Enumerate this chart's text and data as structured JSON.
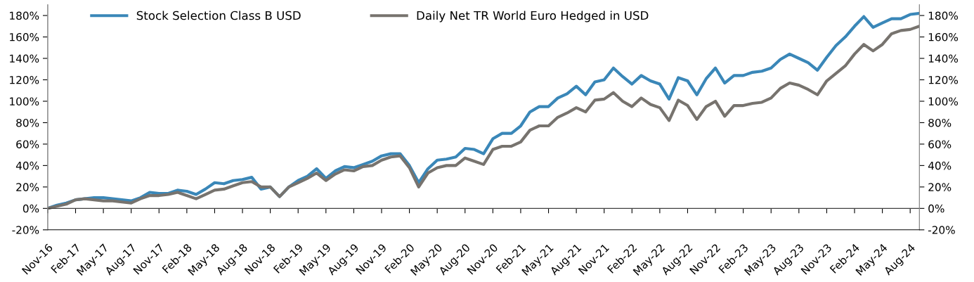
{
  "chart_data": {
    "type": "line",
    "categories": [
      "Nov-16",
      null,
      null,
      "Feb-17",
      null,
      null,
      "May-17",
      null,
      null,
      "Aug-17",
      null,
      null,
      "Nov-17",
      null,
      null,
      "Feb-18",
      null,
      null,
      "May-18",
      null,
      null,
      "Aug-18",
      null,
      null,
      "Nov-18",
      null,
      null,
      "Feb-19",
      null,
      null,
      "May-19",
      null,
      null,
      "Aug-19",
      null,
      null,
      "Nov-19",
      null,
      null,
      "Feb-20",
      null,
      null,
      "May-20",
      null,
      null,
      "Aug-20",
      null,
      null,
      "Nov-20",
      null,
      null,
      "Feb-21",
      null,
      null,
      "May-21",
      null,
      null,
      "Aug-21",
      null,
      null,
      "Nov-21",
      null,
      null,
      "Feb-22",
      null,
      null,
      "May-22",
      null,
      null,
      "Aug-22",
      null,
      null,
      "Nov-22",
      null,
      null,
      "Feb-23",
      null,
      null,
      "May-23",
      null,
      null,
      "Aug-23",
      null,
      null,
      "Nov-23",
      null,
      null,
      "Feb-24",
      null,
      null,
      "May-24",
      null,
      null,
      "Aug-24",
      null
    ],
    "series": [
      {
        "name": "Stock Selection Class B USD",
        "color": "#3a87b8",
        "values": [
          0,
          3,
          5,
          8,
          9,
          10,
          10,
          9,
          8,
          7,
          10,
          15,
          14,
          14,
          17,
          16,
          13,
          18,
          24,
          23,
          26,
          27,
          29,
          18,
          20,
          11,
          20,
          26,
          30,
          37,
          28,
          35,
          39,
          38,
          41,
          44,
          49,
          51,
          51,
          40,
          24,
          37,
          45,
          46,
          48,
          56,
          55,
          51,
          65,
          70,
          70,
          77,
          90,
          95,
          95,
          103,
          107,
          114,
          106,
          118,
          120,
          131,
          123,
          116,
          124,
          119,
          116,
          102,
          122,
          119,
          106,
          121,
          131,
          117,
          124,
          124,
          127,
          128,
          131,
          139,
          144,
          140,
          136,
          129,
          141,
          152,
          160,
          170,
          179,
          169,
          173,
          177,
          177,
          181,
          182
        ]
      },
      {
        "name": "Daily Net TR World Euro Hedged in USD",
        "color": "#77736e",
        "values": [
          0,
          2,
          4,
          8,
          9,
          8,
          7,
          7,
          6,
          5,
          9,
          12,
          12,
          13,
          15,
          12,
          9,
          13,
          17,
          18,
          21,
          24,
          25,
          20,
          20,
          11,
          20,
          24,
          28,
          33,
          26,
          32,
          36,
          35,
          39,
          40,
          45,
          48,
          49,
          38,
          20,
          33,
          38,
          40,
          40,
          47,
          44,
          41,
          55,
          58,
          58,
          62,
          73,
          77,
          77,
          85,
          89,
          94,
          90,
          101,
          102,
          108,
          100,
          95,
          103,
          97,
          94,
          82,
          101,
          96,
          83,
          95,
          100,
          86,
          96,
          96,
          98,
          99,
          103,
          112,
          117,
          115,
          111,
          106,
          119,
          126,
          133,
          144,
          153,
          147,
          153,
          163,
          166,
          167,
          170
        ]
      }
    ],
    "ylim": [
      -20,
      190
    ],
    "yticks": [
      {
        "value": -20,
        "label": "-20%"
      },
      {
        "value": 0,
        "label": "0%"
      },
      {
        "value": 20,
        "label": "20%"
      },
      {
        "value": 40,
        "label": "40%"
      },
      {
        "value": 60,
        "label": "60%"
      },
      {
        "value": 80,
        "label": "80%"
      },
      {
        "value": 100,
        "label": "100%"
      },
      {
        "value": 120,
        "label": "120%"
      },
      {
        "value": 140,
        "label": "140%"
      },
      {
        "value": 160,
        "label": "160%"
      },
      {
        "value": 180,
        "label": "180%"
      }
    ],
    "y2lim": [
      -20,
      190
    ],
    "y2ticks": [
      {
        "value": -20,
        "label": "-20%"
      },
      {
        "value": 0,
        "label": "0%"
      },
      {
        "value": 20,
        "label": "20%"
      },
      {
        "value": 40,
        "label": "40%"
      },
      {
        "value": 60,
        "label": "60%"
      },
      {
        "value": 80,
        "label": "80%"
      },
      {
        "value": 100,
        "label": "100%"
      },
      {
        "value": 120,
        "label": "120%"
      },
      {
        "value": 140,
        "label": "140%"
      },
      {
        "value": 160,
        "label": "160%"
      },
      {
        "value": 180,
        "label": "180%"
      }
    ],
    "legend": "top",
    "marker": "none",
    "line_style": "solid"
  }
}
